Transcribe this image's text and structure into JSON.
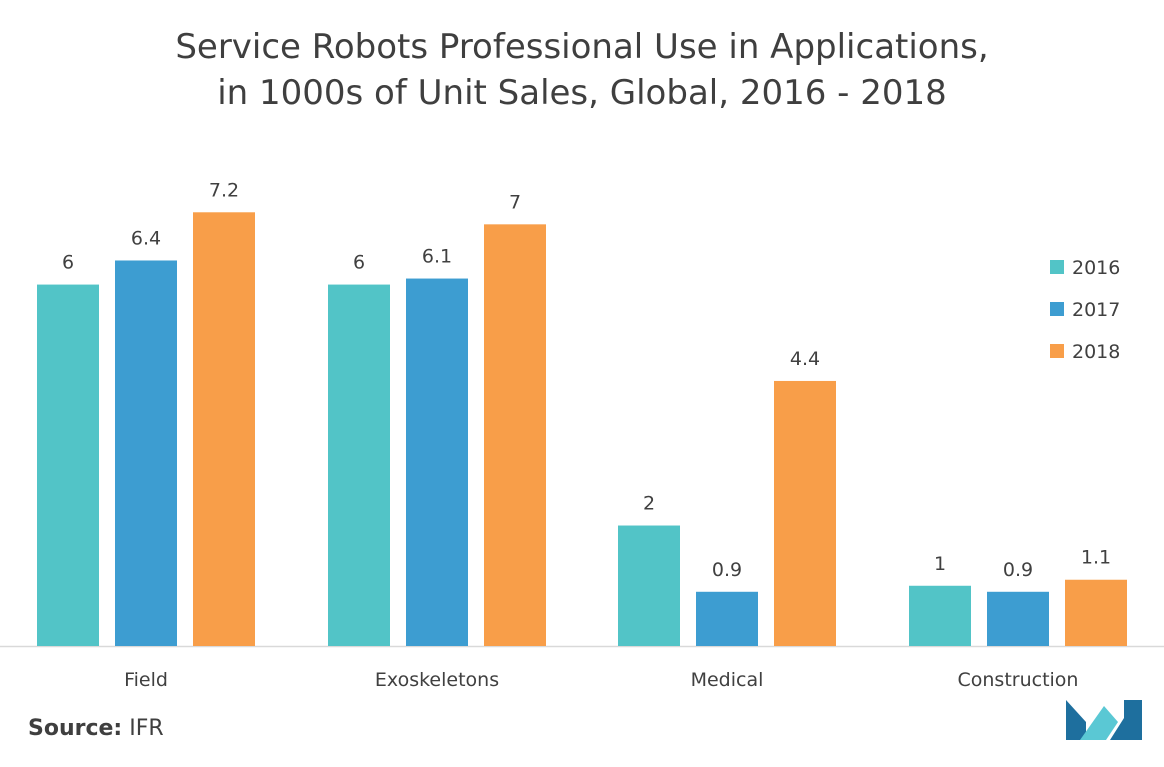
{
  "chart_data": {
    "type": "bar",
    "title_lines": [
      "Service  Robots Professional Use in Applications,",
      "in 1000s of Unit Sales, Global, 2016 - 2018"
    ],
    "categories": [
      "Field",
      "Exoskeletons",
      "Medical",
      "Construction"
    ],
    "series": [
      {
        "name": "2016",
        "color": "#52c4c7",
        "values": [
          6,
          6,
          2,
          1
        ]
      },
      {
        "name": "2017",
        "color": "#3d9dd1",
        "values": [
          6.4,
          6.1,
          0.9,
          0.9
        ]
      },
      {
        "name": "2018",
        "color": "#f89e49",
        "values": [
          7.2,
          7,
          4.4,
          1.1
        ]
      }
    ],
    "data_labels": [
      [
        "6",
        "6",
        "2",
        "1"
      ],
      [
        "6.4",
        "6.1",
        "0.9",
        "0.9"
      ],
      [
        "7.2",
        "7",
        "4.4",
        "1.1"
      ]
    ],
    "ylim": [
      0,
      8.4
    ],
    "xlabel": "",
    "ylabel": "",
    "grid": false,
    "legend_position": "right"
  },
  "source": {
    "label": "Source:",
    "value": "IFR"
  },
  "logo": {
    "name": "brand-logo",
    "colors": [
      "#1e6f9e",
      "#5ac8d4"
    ]
  }
}
